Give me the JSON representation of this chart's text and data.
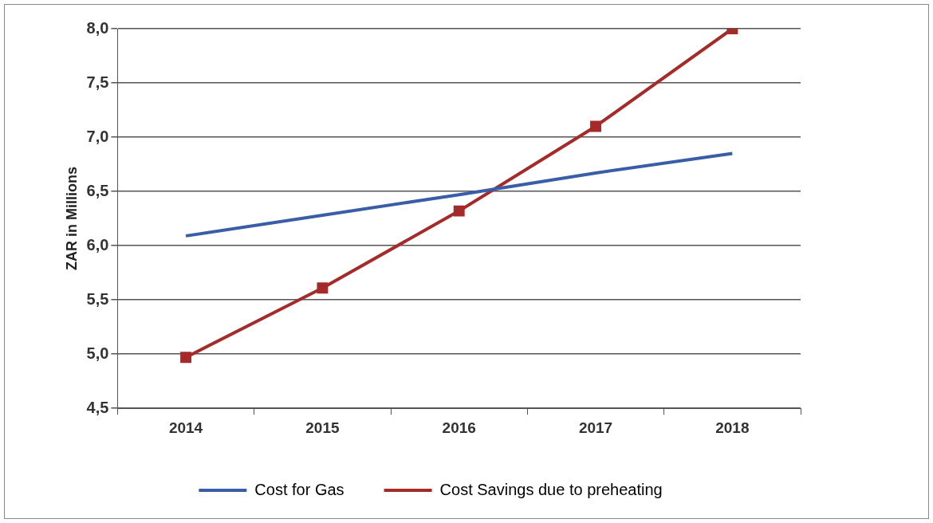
{
  "chart_data": {
    "type": "line",
    "ylabel": "ZAR in Millions",
    "categories": [
      "2014",
      "2015",
      "2016",
      "2017",
      "2018"
    ],
    "series": [
      {
        "name": "Cost for Gas",
        "color": "#3a5da8",
        "marker": "none",
        "values": [
          6.09,
          6.28,
          6.47,
          6.67,
          6.85
        ]
      },
      {
        "name": "Cost Savings due to preheating",
        "color": "#a52a2a",
        "marker": "square",
        "values": [
          4.97,
          5.61,
          6.32,
          7.1,
          8.0
        ]
      }
    ],
    "ylim": [
      4.5,
      8.0
    ],
    "yticks": [
      {
        "value": 4.5,
        "label": "4,5"
      },
      {
        "value": 5.0,
        "label": "5,0"
      },
      {
        "value": 5.5,
        "label": "5,5"
      },
      {
        "value": 6.0,
        "label": "6,0"
      },
      {
        "value": 6.5,
        "label": "6,5"
      },
      {
        "value": 7.0,
        "label": "7,0"
      },
      {
        "value": 7.5,
        "label": "7,5"
      },
      {
        "value": 8.0,
        "label": "8,0"
      }
    ],
    "grid": "y",
    "legend": "bottom",
    "line_style": "solid"
  }
}
